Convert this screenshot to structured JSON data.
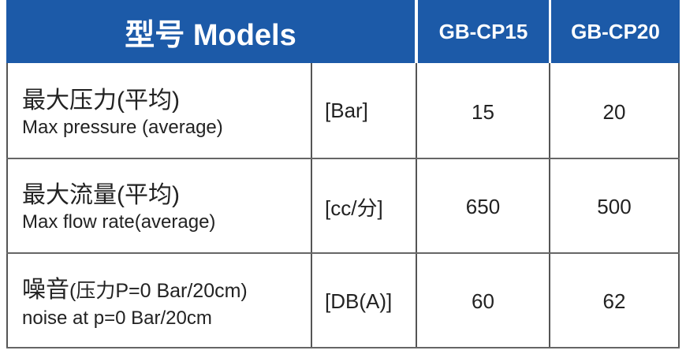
{
  "header": {
    "title": "型号 Models",
    "models": [
      "GB-CP15",
      "GB-CP20"
    ]
  },
  "rows": [
    {
      "label_zh": "最大压力(平均)",
      "label_en": "Max pressure (average)",
      "unit": "[Bar]",
      "values": [
        15,
        20
      ]
    },
    {
      "label_zh": "最大流量(平均)",
      "label_en": "Max flow rate(average)",
      "unit": "[cc/分]",
      "values": [
        650,
        500
      ]
    },
    {
      "label_zh": "噪音",
      "label_note": "(压力P=0 Bar/20cm)",
      "label_en": "noise at p=0 Bar/20cm",
      "unit": "[DB(A)]",
      "values": [
        60,
        62
      ]
    }
  ]
}
